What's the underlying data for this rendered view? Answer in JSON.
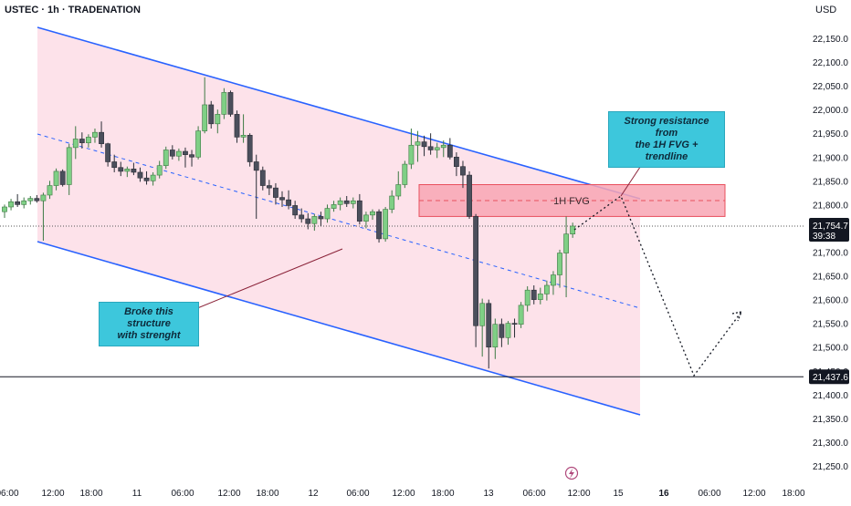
{
  "header": {
    "symbol": "USTEC · 1h · TRADENATION",
    "currency": "USD"
  },
  "colors": {
    "up": "#7fcf85",
    "down": "#4b4f5c",
    "channel": "#2962ff",
    "channel_fill": "#fde2ea",
    "fvg_fill": "#f8a6b4",
    "fvg_border": "#e8505e",
    "callout": "#3dc7dc"
  },
  "annotations": {
    "broke": "Broke this structure\nwith strenght",
    "resist": "Strong resistance from\nthe 1H FVG + trendline",
    "fvg": "1H FVG"
  },
  "price_labels": {
    "last_price": "21,754.7",
    "countdown": "39:38",
    "support": "21,437.6"
  },
  "alert_icon": "lightning-icon",
  "chart_data": {
    "type": "candlestick",
    "x_ticks": [
      "06:00",
      "12:00",
      "18:00",
      "11",
      "06:00",
      "12:00",
      "18:00",
      "12",
      "06:00",
      "12:00",
      "18:00",
      "13",
      "06:00",
      "12:00",
      "15",
      "16",
      "06:00",
      "12:00",
      "18:00"
    ],
    "y_ticks": [
      "22,150.0",
      "22,100.0",
      "22,050.0",
      "22,000.0",
      "21,950.0",
      "21,900.0",
      "21,850.0",
      "21,800.0",
      "21,750.0",
      "21,700.0",
      "21,650.0",
      "21,600.0",
      "21,550.0",
      "21,500.0",
      "21,450.0",
      "21,400.0",
      "21,350.0",
      "21,300.0",
      "21,250.0"
    ],
    "ylim": [
      21240,
      22165
    ],
    "last_price": 21754.7,
    "support_level": 21437.6,
    "fvg_zone": [
      21775,
      21842
    ],
    "candles": [
      {
        "o": 21785,
        "h": 21800,
        "l": 21772,
        "c": 21795
      },
      {
        "o": 21795,
        "h": 21812,
        "l": 21788,
        "c": 21806
      },
      {
        "o": 21806,
        "h": 21822,
        "l": 21795,
        "c": 21800
      },
      {
        "o": 21800,
        "h": 21815,
        "l": 21792,
        "c": 21808
      },
      {
        "o": 21808,
        "h": 21818,
        "l": 21800,
        "c": 21813
      },
      {
        "o": 21813,
        "h": 21820,
        "l": 21804,
        "c": 21808
      },
      {
        "o": 21808,
        "h": 21825,
        "l": 21724,
        "c": 21820
      },
      {
        "o": 21820,
        "h": 21850,
        "l": 21812,
        "c": 21840
      },
      {
        "o": 21840,
        "h": 21876,
        "l": 21830,
        "c": 21870
      },
      {
        "o": 21870,
        "h": 21874,
        "l": 21838,
        "c": 21842
      },
      {
        "o": 21842,
        "h": 21928,
        "l": 21820,
        "c": 21920
      },
      {
        "o": 21920,
        "h": 21965,
        "l": 21896,
        "c": 21938
      },
      {
        "o": 21938,
        "h": 21952,
        "l": 21918,
        "c": 21930
      },
      {
        "o": 21930,
        "h": 21948,
        "l": 21920,
        "c": 21942
      },
      {
        "o": 21942,
        "h": 21960,
        "l": 21930,
        "c": 21952
      },
      {
        "o": 21952,
        "h": 21975,
        "l": 21920,
        "c": 21928
      },
      {
        "o": 21928,
        "h": 21930,
        "l": 21880,
        "c": 21890
      },
      {
        "o": 21890,
        "h": 21905,
        "l": 21868,
        "c": 21878
      },
      {
        "o": 21878,
        "h": 21890,
        "l": 21860,
        "c": 21870
      },
      {
        "o": 21870,
        "h": 21880,
        "l": 21858,
        "c": 21875
      },
      {
        "o": 21875,
        "h": 21888,
        "l": 21862,
        "c": 21868
      },
      {
        "o": 21868,
        "h": 21878,
        "l": 21848,
        "c": 21856
      },
      {
        "o": 21856,
        "h": 21870,
        "l": 21842,
        "c": 21850
      },
      {
        "o": 21850,
        "h": 21868,
        "l": 21840,
        "c": 21862
      },
      {
        "o": 21862,
        "h": 21892,
        "l": 21855,
        "c": 21882
      },
      {
        "o": 21882,
        "h": 21922,
        "l": 21875,
        "c": 21915
      },
      {
        "o": 21915,
        "h": 21925,
        "l": 21895,
        "c": 21902
      },
      {
        "o": 21902,
        "h": 21918,
        "l": 21892,
        "c": 21912
      },
      {
        "o": 21912,
        "h": 21920,
        "l": 21878,
        "c": 21905
      },
      {
        "o": 21905,
        "h": 21915,
        "l": 21880,
        "c": 21900
      },
      {
        "o": 21900,
        "h": 21965,
        "l": 21895,
        "c": 21955
      },
      {
        "o": 21955,
        "h": 22068,
        "l": 21950,
        "c": 22010
      },
      {
        "o": 22010,
        "h": 22018,
        "l": 21960,
        "c": 21970
      },
      {
        "o": 21970,
        "h": 22000,
        "l": 21950,
        "c": 21990
      },
      {
        "o": 21990,
        "h": 22045,
        "l": 21980,
        "c": 22036
      },
      {
        "o": 22036,
        "h": 22040,
        "l": 21985,
        "c": 21990
      },
      {
        "o": 21990,
        "h": 21998,
        "l": 21930,
        "c": 21942
      },
      {
        "o": 21942,
        "h": 21990,
        "l": 21930,
        "c": 21946
      },
      {
        "o": 21946,
        "h": 21950,
        "l": 21880,
        "c": 21890
      },
      {
        "o": 21890,
        "h": 21905,
        "l": 21770,
        "c": 21872
      },
      {
        "o": 21872,
        "h": 21880,
        "l": 21830,
        "c": 21840
      },
      {
        "o": 21840,
        "h": 21852,
        "l": 21820,
        "c": 21835
      },
      {
        "o": 21835,
        "h": 21845,
        "l": 21800,
        "c": 21815
      },
      {
        "o": 21815,
        "h": 21828,
        "l": 21795,
        "c": 21810
      },
      {
        "o": 21810,
        "h": 21830,
        "l": 21790,
        "c": 21798
      },
      {
        "o": 21798,
        "h": 21808,
        "l": 21770,
        "c": 21778
      },
      {
        "o": 21778,
        "h": 21792,
        "l": 21762,
        "c": 21770
      },
      {
        "o": 21770,
        "h": 21782,
        "l": 21748,
        "c": 21760
      },
      {
        "o": 21760,
        "h": 21780,
        "l": 21745,
        "c": 21775
      },
      {
        "o": 21775,
        "h": 21785,
        "l": 21755,
        "c": 21770
      },
      {
        "o": 21770,
        "h": 21800,
        "l": 21762,
        "c": 21792
      },
      {
        "o": 21792,
        "h": 21808,
        "l": 21785,
        "c": 21800
      },
      {
        "o": 21800,
        "h": 21815,
        "l": 21788,
        "c": 21808
      },
      {
        "o": 21808,
        "h": 21818,
        "l": 21795,
        "c": 21802
      },
      {
        "o": 21802,
        "h": 21815,
        "l": 21792,
        "c": 21808
      },
      {
        "o": 21808,
        "h": 21822,
        "l": 21758,
        "c": 21765
      },
      {
        "o": 21765,
        "h": 21785,
        "l": 21750,
        "c": 21778
      },
      {
        "o": 21778,
        "h": 21790,
        "l": 21768,
        "c": 21785
      },
      {
        "o": 21785,
        "h": 21790,
        "l": 21720,
        "c": 21728
      },
      {
        "o": 21728,
        "h": 21795,
        "l": 21722,
        "c": 21790
      },
      {
        "o": 21790,
        "h": 21830,
        "l": 21782,
        "c": 21818
      },
      {
        "o": 21818,
        "h": 21870,
        "l": 21810,
        "c": 21842
      },
      {
        "o": 21842,
        "h": 21892,
        "l": 21835,
        "c": 21885
      },
      {
        "o": 21885,
        "h": 21960,
        "l": 21875,
        "c": 21925
      },
      {
        "o": 21925,
        "h": 21955,
        "l": 21890,
        "c": 21932
      },
      {
        "o": 21932,
        "h": 21945,
        "l": 21902,
        "c": 21922
      },
      {
        "o": 21922,
        "h": 21950,
        "l": 21905,
        "c": 21915
      },
      {
        "o": 21915,
        "h": 21930,
        "l": 21898,
        "c": 21920
      },
      {
        "o": 21920,
        "h": 21935,
        "l": 21900,
        "c": 21925
      },
      {
        "o": 21925,
        "h": 21940,
        "l": 21895,
        "c": 21900
      },
      {
        "o": 21900,
        "h": 21910,
        "l": 21860,
        "c": 21880
      },
      {
        "o": 21880,
        "h": 21892,
        "l": 21835,
        "c": 21862
      },
      {
        "o": 21862,
        "h": 21870,
        "l": 21770,
        "c": 21775
      },
      {
        "o": 21775,
        "h": 21780,
        "l": 21500,
        "c": 21545
      },
      {
        "o": 21545,
        "h": 21602,
        "l": 21480,
        "c": 21592
      },
      {
        "o": 21592,
        "h": 21600,
        "l": 21455,
        "c": 21500
      },
      {
        "o": 21500,
        "h": 21560,
        "l": 21475,
        "c": 21548
      },
      {
        "o": 21548,
        "h": 21560,
        "l": 21500,
        "c": 21520
      },
      {
        "o": 21520,
        "h": 21555,
        "l": 21505,
        "c": 21550
      },
      {
        "o": 21550,
        "h": 21560,
        "l": 21520,
        "c": 21548
      },
      {
        "o": 21548,
        "h": 21595,
        "l": 21540,
        "c": 21588
      },
      {
        "o": 21588,
        "h": 21628,
        "l": 21575,
        "c": 21620
      },
      {
        "o": 21620,
        "h": 21630,
        "l": 21590,
        "c": 21600
      },
      {
        "o": 21600,
        "h": 21625,
        "l": 21590,
        "c": 21612
      },
      {
        "o": 21612,
        "h": 21640,
        "l": 21598,
        "c": 21630
      },
      {
        "o": 21630,
        "h": 21660,
        "l": 21610,
        "c": 21652
      },
      {
        "o": 21652,
        "h": 21705,
        "l": 21625,
        "c": 21698
      },
      {
        "o": 21698,
        "h": 21775,
        "l": 21605,
        "c": 21738
      },
      {
        "o": 21738,
        "h": 21762,
        "l": 21730,
        "c": 21754.7
      }
    ]
  }
}
